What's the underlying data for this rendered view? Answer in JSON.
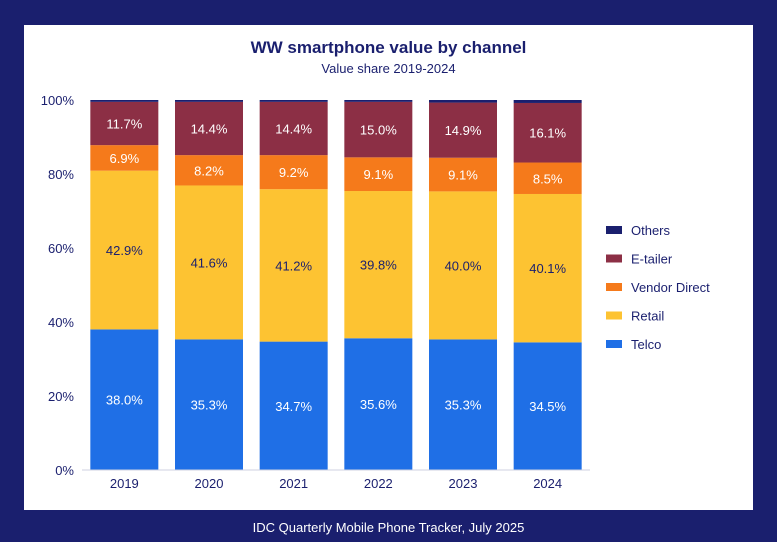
{
  "source_note": "IDC Quarterly Mobile Phone Tracker, July 2025",
  "chart_data": {
    "type": "bar",
    "stacked": true,
    "title": "WW smartphone value by channel",
    "subtitle": "Value share 2019-2024",
    "categories": [
      "2019",
      "2020",
      "2021",
      "2022",
      "2023",
      "2024"
    ],
    "y_ticks": [
      "0%",
      "20%",
      "40%",
      "60%",
      "80%",
      "100%"
    ],
    "ylim": [
      0,
      100
    ],
    "legend_position": "right",
    "series": [
      {
        "name": "Telco",
        "color": "#1f6fe6",
        "label_color": "#ffffff",
        "values": [
          38.0,
          35.3,
          34.7,
          35.6,
          35.3,
          34.5
        ],
        "labels": [
          "38.0%",
          "35.3%",
          "34.7%",
          "35.6%",
          "35.3%",
          "34.5%"
        ]
      },
      {
        "name": "Retail",
        "color": "#fdc332",
        "label_color": "#1a1f6e",
        "values": [
          42.9,
          41.6,
          41.2,
          39.8,
          40.0,
          40.1
        ],
        "labels": [
          "42.9%",
          "41.6%",
          "41.2%",
          "39.8%",
          "40.0%",
          "40.1%"
        ]
      },
      {
        "name": "Vendor Direct",
        "color": "#f57a1b",
        "label_color": "#ffffff",
        "values": [
          6.9,
          8.2,
          9.2,
          9.1,
          9.1,
          8.5
        ],
        "labels": [
          "6.9%",
          "8.2%",
          "9.2%",
          "9.1%",
          "9.1%",
          "8.5%"
        ]
      },
      {
        "name": "E-tailer",
        "color": "#8c2f45",
        "label_color": "#ffffff",
        "values": [
          11.7,
          14.4,
          14.4,
          15.0,
          14.9,
          16.1
        ],
        "labels": [
          "11.7%",
          "14.4%",
          "14.4%",
          "15.0%",
          "14.9%",
          "16.1%"
        ]
      },
      {
        "name": "Others",
        "color": "#1a1f6e",
        "label_color": "#ffffff",
        "values": [
          0.5,
          0.5,
          0.5,
          0.5,
          0.7,
          0.8
        ],
        "labels": [
          "",
          "",
          "",
          "",
          "",
          ""
        ]
      }
    ]
  }
}
